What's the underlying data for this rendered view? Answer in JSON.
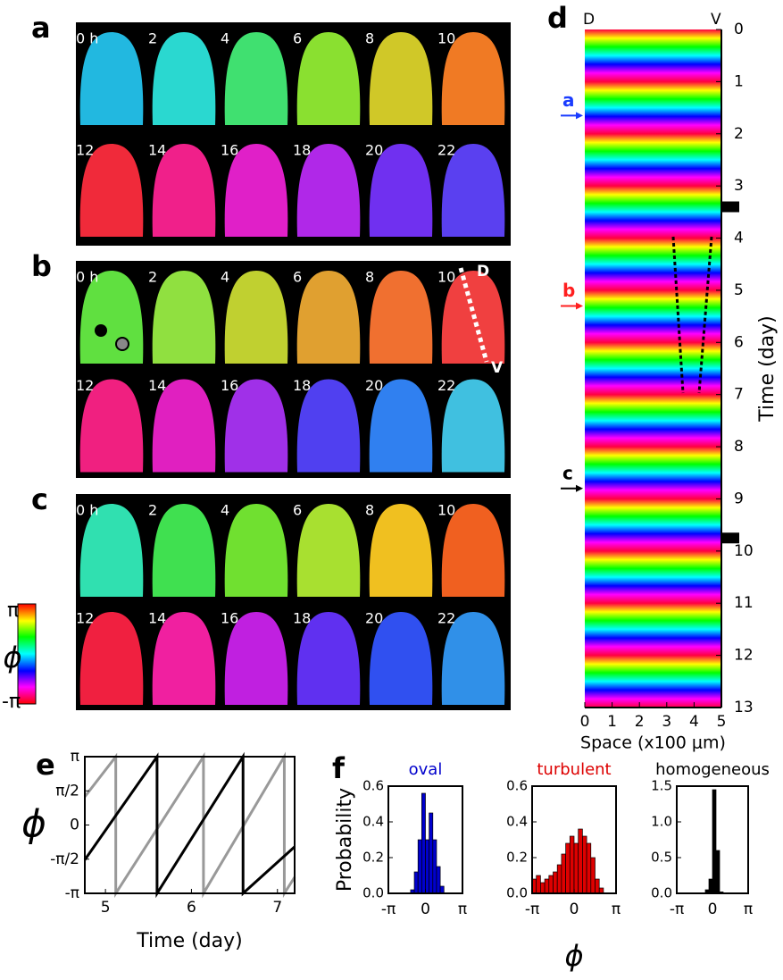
{
  "phase_maps": {
    "panels": [
      {
        "label": "a",
        "frames": [
          "0 h",
          "2",
          "4",
          "6",
          "8",
          "10",
          "12",
          "14",
          "16",
          "18",
          "20",
          "22"
        ],
        "colors": [
          "#22b8e0",
          "#2ad8d0",
          "#40e070",
          "#8ae030",
          "#d0c828",
          "#f07a24",
          "#f02a3a",
          "#f0208a",
          "#e020c8",
          "#b028e8",
          "#7030f0",
          "#5a40f0"
        ]
      },
      {
        "label": "b",
        "frames": [
          "0 h",
          "2",
          "4",
          "6",
          "8",
          "10",
          "12",
          "14",
          "16",
          "18",
          "20",
          "22"
        ],
        "colors": [
          "#60e040",
          "#90e040",
          "#c0d030",
          "#e0a030",
          "#f07030",
          "#f04040",
          "#f02080",
          "#e020c0",
          "#a030e8",
          "#5040f0",
          "#3080f0",
          "#40c0e0"
        ],
        "annotations": [
          "D",
          "V"
        ]
      },
      {
        "label": "c",
        "frames": [
          "0 h",
          "2",
          "4",
          "6",
          "8",
          "10",
          "12",
          "14",
          "16",
          "18",
          "20",
          "22"
        ],
        "colors": [
          "#30e0b0",
          "#40e050",
          "#70e030",
          "#a8e030",
          "#f0c020",
          "#f06020",
          "#f02040",
          "#f020a0",
          "#c020e0",
          "#6030f0",
          "#3050f0",
          "#3090e8"
        ]
      }
    ],
    "colorbar": {
      "top": "π",
      "symbol": "ϕ",
      "bottom": "-π"
    }
  },
  "chart_data": [
    {
      "type": "heatmap",
      "panel": "d",
      "xlabel": "Space (x100 μm)",
      "ylabel": "Time (day)",
      "xlim": [
        0,
        5
      ],
      "xticks": [
        0,
        1,
        2,
        3,
        4,
        5
      ],
      "ylim": [
        0,
        13
      ],
      "yticks": [
        0,
        1,
        2,
        3,
        4,
        5,
        6,
        7,
        8,
        9,
        10,
        11,
        12,
        13
      ],
      "edge_labels": [
        "D",
        "V"
      ],
      "arrows": [
        {
          "label": "a",
          "y": 1.65,
          "color": "#1a3cff"
        },
        {
          "label": "b",
          "y": 5.3,
          "color": "#ff2020"
        },
        {
          "label": "c",
          "y": 8.8,
          "color": "#000000"
        }
      ],
      "markers": [
        3.4,
        9.75
      ]
    },
    {
      "type": "line",
      "panel": "e",
      "xlabel": "Time (day)",
      "ylabel": "ϕ",
      "xlim": [
        4.76,
        7.2
      ],
      "xticks": [
        5,
        6,
        7
      ],
      "ylim": [
        -3.1416,
        3.1416
      ],
      "yticks": [
        {
          "value": -3.1416,
          "label": "-π"
        },
        {
          "value": -1.5708,
          "label": "-π/2"
        },
        0,
        {
          "value": 1.5708,
          "label": "π/2"
        },
        {
          "value": 3.1416,
          "label": "π"
        }
      ],
      "series": [
        {
          "color": "#999999",
          "x": [
            4.76,
            5.12,
            5.12,
            6.14,
            6.14,
            7.08,
            7.08,
            7.2
          ],
          "values": [
            1.3,
            3.1416,
            -3.1416,
            3.1416,
            -3.1416,
            3.1416,
            -3.1416,
            -2.4
          ]
        },
        {
          "color": "#000000",
          "x": [
            4.76,
            5.6,
            5.6,
            6.6,
            6.6,
            7.2
          ],
          "values": [
            -1.6,
            3.1416,
            -3.1416,
            3.1416,
            -3.1416,
            -1.0
          ]
        }
      ]
    },
    {
      "type": "histogram",
      "panel": "f",
      "title": "oval",
      "color": "#0000cc",
      "ylabel": "Probability",
      "bins": [
        -3.1416,
        -2.8274,
        -2.5133,
        -2.1991,
        -1.885,
        -1.5708,
        -1.2566,
        -0.9425,
        -0.6283,
        -0.3142,
        0,
        0.3142,
        0.6283,
        0.9425,
        1.2566,
        1.5708,
        1.885,
        2.1991,
        2.5133,
        2.8274,
        3.1416
      ],
      "values": [
        0,
        0,
        0,
        0,
        0,
        0,
        0.02,
        0.12,
        0.3,
        0.56,
        0.3,
        0.45,
        0.3,
        0.15,
        0.04,
        0,
        0,
        0,
        0,
        0
      ],
      "xlim": [
        -3.1416,
        3.1416
      ],
      "xticks": [
        {
          "value": -3.1416,
          "label": "-π"
        },
        0,
        {
          "value": 3.1416,
          "label": "π"
        }
      ],
      "ylim": [
        0,
        0.6
      ],
      "yticks": [
        {
          "value": 0,
          "label": "0.0"
        },
        0.2,
        0.4,
        0.6
      ]
    },
    {
      "type": "histogram",
      "title": "turbulent",
      "color": "#dd0000",
      "xlabel": "ϕ",
      "bins": [
        -3.1416,
        -2.8274,
        -2.5133,
        -2.1991,
        -1.885,
        -1.5708,
        -1.2566,
        -0.9425,
        -0.6283,
        -0.3142,
        0,
        0.3142,
        0.6283,
        0.9425,
        1.2566,
        1.5708,
        1.885,
        2.1991,
        2.5133,
        2.8274,
        3.1416
      ],
      "values": [
        0.08,
        0.1,
        0.06,
        0.08,
        0.1,
        0.12,
        0.16,
        0.22,
        0.28,
        0.32,
        0.28,
        0.36,
        0.32,
        0.28,
        0.2,
        0.08,
        0.03,
        0,
        0,
        0
      ],
      "xlim": [
        -3.1416,
        3.1416
      ],
      "xticks": [
        {
          "value": -3.1416,
          "label": "-π"
        },
        0,
        {
          "value": 3.1416,
          "label": "π"
        }
      ],
      "ylim": [
        0,
        0.6
      ],
      "yticks": [
        {
          "value": 0,
          "label": "0.0"
        },
        0.2,
        0.4,
        0.6
      ]
    },
    {
      "type": "histogram",
      "title": "homogeneous",
      "color": "#000000",
      "bins": [
        -3.1416,
        -2.8274,
        -2.5133,
        -2.1991,
        -1.885,
        -1.5708,
        -1.2566,
        -0.9425,
        -0.6283,
        -0.3142,
        0,
        0.3142,
        0.6283,
        0.9425,
        1.2566,
        1.5708,
        1.885,
        2.1991,
        2.5133,
        2.8274,
        3.1416
      ],
      "values": [
        0,
        0,
        0,
        0,
        0,
        0,
        0,
        0,
        0.05,
        0.2,
        1.45,
        0.6,
        0.02,
        0,
        0,
        0,
        0,
        0,
        0,
        0
      ],
      "xlim": [
        -3.1416,
        3.1416
      ],
      "xticks": [
        {
          "value": -3.1416,
          "label": "-π"
        },
        0,
        {
          "value": 3.1416,
          "label": "π"
        }
      ],
      "ylim": [
        0,
        1.5
      ],
      "yticks": [
        {
          "value": 0,
          "label": "0.0"
        },
        0.5,
        {
          "value": 1,
          "label": "1.0"
        },
        1.5
      ]
    }
  ]
}
